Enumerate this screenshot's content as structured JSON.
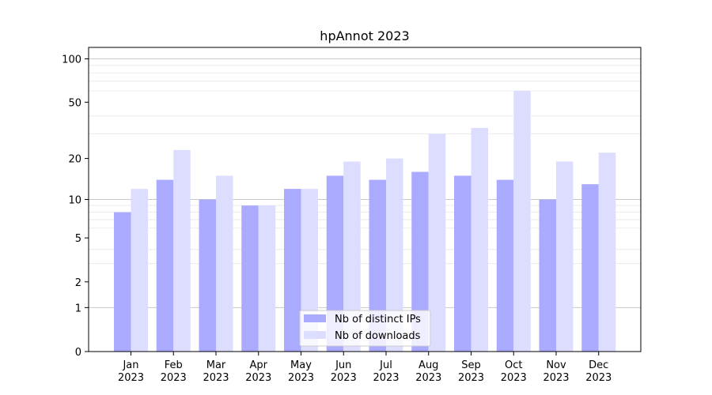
{
  "chart_data": {
    "type": "bar",
    "title": "hpAnnot 2023",
    "xlabel": "",
    "ylabel": "",
    "scale": "log(1+y)",
    "ylim": [
      0,
      120
    ],
    "yticks": [
      {
        "value": 0,
        "label": "0"
      },
      {
        "value": 1,
        "label": "1"
      },
      {
        "value": 2,
        "label": "2"
      },
      {
        "value": 5,
        "label": "5"
      },
      {
        "value": 10,
        "label": "10"
      },
      {
        "value": 20,
        "label": "20"
      },
      {
        "value": 50,
        "label": "50"
      },
      {
        "value": 100,
        "label": "100"
      }
    ],
    "categories": [
      {
        "month": "Jan",
        "year": "2023"
      },
      {
        "month": "Feb",
        "year": "2023"
      },
      {
        "month": "Mar",
        "year": "2023"
      },
      {
        "month": "Apr",
        "year": "2023"
      },
      {
        "month": "May",
        "year": "2023"
      },
      {
        "month": "Jun",
        "year": "2023"
      },
      {
        "month": "Jul",
        "year": "2023"
      },
      {
        "month": "Aug",
        "year": "2023"
      },
      {
        "month": "Sep",
        "year": "2023"
      },
      {
        "month": "Oct",
        "year": "2023"
      },
      {
        "month": "Nov",
        "year": "2023"
      },
      {
        "month": "Dec",
        "year": "2023"
      }
    ],
    "series": [
      {
        "name": "Nb of distinct IPs",
        "color": "#aaaaff",
        "values": [
          8,
          14,
          10,
          9,
          12,
          15,
          14,
          16,
          15,
          14,
          10,
          13
        ]
      },
      {
        "name": "Nb of downloads",
        "color": "#ddddff",
        "values": [
          12,
          23,
          15,
          9,
          12,
          19,
          20,
          30,
          33,
          60,
          19,
          22
        ]
      }
    ],
    "grid": true,
    "legend_position": "bottom-center"
  }
}
